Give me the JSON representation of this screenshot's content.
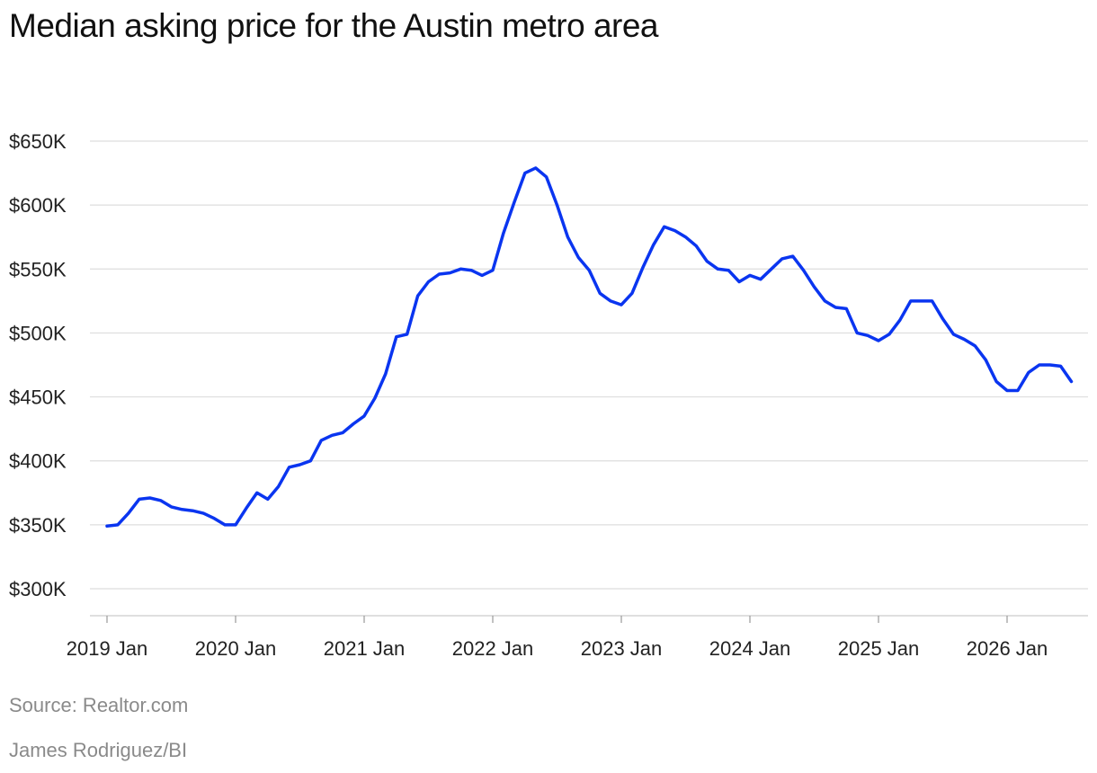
{
  "title": "Median asking price for the Austin metro area",
  "source": "Source: Realtor.com",
  "credit": "James Rodriguez/BI",
  "colors": {
    "line": "#0a35f0",
    "grid": "#dddddd",
    "axis": "#cccccc"
  },
  "chart_data": {
    "type": "line",
    "title": "Median asking price for the Austin metro area",
    "xlabel": "",
    "ylabel": "",
    "ylim": [
      300000,
      650000
    ],
    "y_ticks": [
      300000,
      350000,
      400000,
      450000,
      500000,
      550000,
      600000,
      650000
    ],
    "y_tick_labels": [
      "$300K",
      "$350K",
      "$400K",
      "$450K",
      "$500K",
      "$550K",
      "$600K",
      "$650K"
    ],
    "x_ticks": [
      "2019-01",
      "2020-01",
      "2021-01",
      "2022-01",
      "2023-01",
      "2024-01",
      "2025-01",
      "2026-01"
    ],
    "x_tick_labels": [
      "2019 Jan",
      "2020 Jan",
      "2021 Jan",
      "2022 Jan",
      "2023 Jan",
      "2024 Jan",
      "2025 Jan",
      "2026 Jan"
    ],
    "grid": true,
    "legend": "none",
    "series": [
      {
        "x": [
          "2019-01",
          "2019-02",
          "2019-03",
          "2019-04",
          "2019-05",
          "2019-06",
          "2019-07",
          "2019-08",
          "2019-09",
          "2019-10",
          "2019-11",
          "2019-12",
          "2020-01",
          "2020-02",
          "2020-03",
          "2020-04",
          "2020-05",
          "2020-06",
          "2020-07",
          "2020-08",
          "2020-09",
          "2020-10",
          "2020-11",
          "2020-12",
          "2021-01",
          "2021-02",
          "2021-03",
          "2021-04",
          "2021-05",
          "2021-06",
          "2021-07",
          "2021-08",
          "2021-09",
          "2021-10",
          "2021-11",
          "2021-12",
          "2022-01",
          "2022-02",
          "2022-03",
          "2022-04",
          "2022-05",
          "2022-06",
          "2022-07",
          "2022-08",
          "2022-09",
          "2022-10",
          "2022-11",
          "2022-12",
          "2023-01",
          "2023-02",
          "2023-03",
          "2023-04",
          "2023-05",
          "2023-06",
          "2023-07",
          "2023-08",
          "2023-09",
          "2023-10",
          "2023-11",
          "2023-12",
          "2024-01",
          "2024-02",
          "2024-03",
          "2024-04",
          "2024-05",
          "2024-06",
          "2024-07",
          "2024-08",
          "2024-09",
          "2024-10",
          "2024-11",
          "2024-12",
          "2025-01",
          "2025-02",
          "2025-03",
          "2025-04",
          "2025-05",
          "2025-06",
          "2025-07",
          "2025-08",
          "2025-09",
          "2025-10",
          "2025-11",
          "2025-12",
          "2026-01",
          "2026-02",
          "2026-03",
          "2026-04",
          "2026-05",
          "2026-06",
          "2026-07"
        ],
        "values": [
          349000,
          350000,
          359000,
          370000,
          371000,
          369000,
          364000,
          362000,
          361000,
          359000,
          355000,
          350000,
          350000,
          363000,
          375000,
          370000,
          380000,
          395000,
          397000,
          400000,
          416000,
          420000,
          422000,
          429000,
          435000,
          449000,
          468000,
          497000,
          499000,
          529000,
          540000,
          546000,
          547000,
          550000,
          549000,
          545000,
          549000,
          578000,
          602000,
          625000,
          629000,
          622000,
          600000,
          575000,
          559000,
          549000,
          531000,
          525000,
          522000,
          531000,
          551000,
          569000,
          583000,
          580000,
          575000,
          568000,
          556000,
          550000,
          549000,
          540000,
          545000,
          542000,
          550000,
          558000,
          560000,
          549000,
          536000,
          525000,
          520000,
          519000,
          500000,
          498000,
          494000,
          499000,
          510000,
          525000,
          525000,
          525000,
          511000,
          499000,
          495000,
          490000,
          479000,
          462000,
          455000,
          455000,
          469000,
          475000,
          475000,
          474000,
          462000
        ]
      }
    ]
  }
}
